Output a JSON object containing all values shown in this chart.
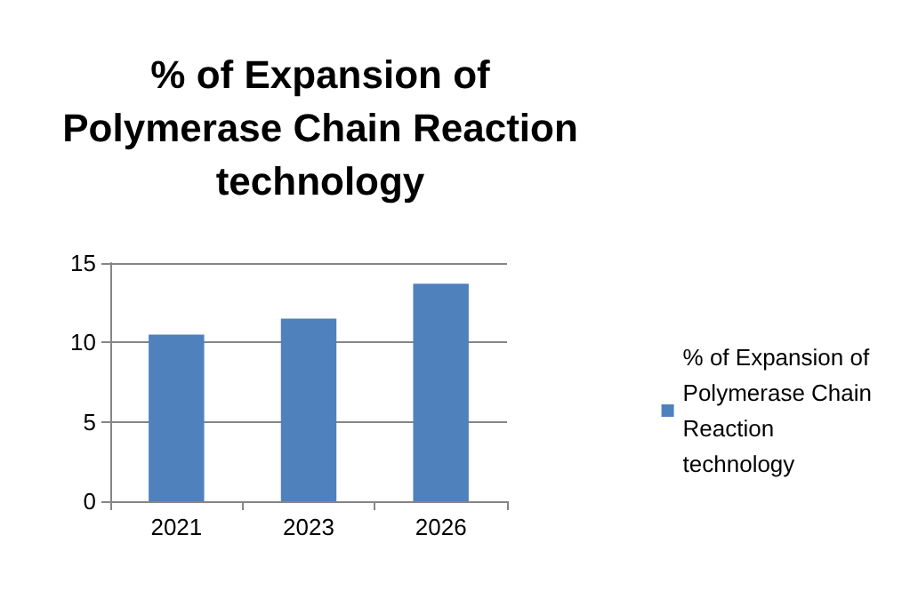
{
  "chart_data": {
    "type": "bar",
    "title": "% of Expansion of\nPolymerase Chain Reaction\ntechnology",
    "categories": [
      "2021",
      "2023",
      "2026"
    ],
    "series": [
      {
        "name": "% of Expansion of\nPolymerase Chain\nReaction\ntechnology",
        "color": "#4f81bd",
        "values": [
          10.5,
          11.5,
          13.7
        ]
      }
    ],
    "ylim": [
      0,
      15
    ],
    "yticks": [
      0,
      5,
      10,
      15
    ],
    "grid": "y",
    "legend": "right"
  }
}
